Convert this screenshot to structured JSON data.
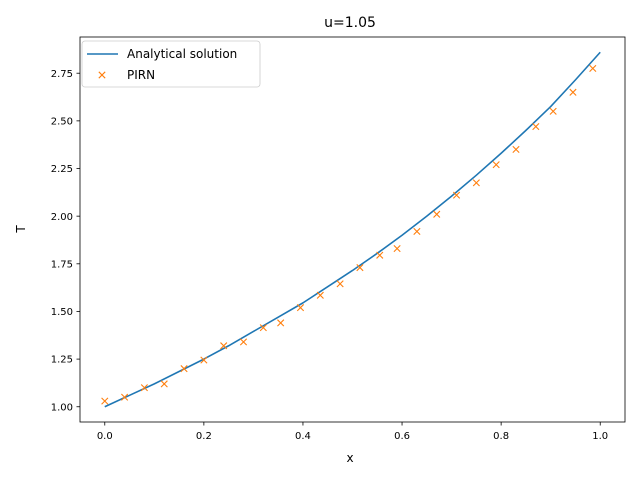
{
  "chart_data": {
    "type": "line",
    "title": "u=1.05",
    "xlabel": "x",
    "ylabel": "T",
    "xlim": [
      -0.05,
      1.05
    ],
    "ylim": [
      0.92,
      2.94
    ],
    "xticks": [
      "0.0",
      "0.2",
      "0.4",
      "0.6",
      "0.8",
      "1.0"
    ],
    "yticks": [
      "1.00",
      "1.25",
      "1.50",
      "1.75",
      "2.00",
      "2.25",
      "2.50",
      "2.75"
    ],
    "grid": false,
    "legend_position": "top-left",
    "series": [
      {
        "name": "Analytical solution",
        "kind": "line",
        "color": "#1f77b4",
        "x": [
          0.0,
          0.05,
          0.1,
          0.15,
          0.2,
          0.25,
          0.3,
          0.35,
          0.4,
          0.45,
          0.5,
          0.55,
          0.6,
          0.65,
          0.7,
          0.75,
          0.8,
          0.85,
          0.9,
          0.95,
          1.0
        ],
        "values": [
          1.0,
          1.06,
          1.12,
          1.185,
          1.25,
          1.32,
          1.395,
          1.47,
          1.545,
          1.63,
          1.715,
          1.805,
          1.9,
          2.0,
          2.105,
          2.215,
          2.33,
          2.45,
          2.575,
          2.715,
          2.86
        ]
      },
      {
        "name": "PIRN",
        "kind": "scatter",
        "marker": "x",
        "color": "#ff7f0e",
        "x": [
          0.0,
          0.04,
          0.08,
          0.12,
          0.16,
          0.2,
          0.24,
          0.28,
          0.32,
          0.355,
          0.395,
          0.435,
          0.475,
          0.515,
          0.555,
          0.59,
          0.63,
          0.67,
          0.71,
          0.75,
          0.79,
          0.83,
          0.87,
          0.905,
          0.945,
          0.985
        ],
        "values": [
          1.03,
          1.05,
          1.1,
          1.12,
          1.2,
          1.245,
          1.32,
          1.34,
          1.415,
          1.44,
          1.52,
          1.585,
          1.645,
          1.73,
          1.795,
          1.83,
          1.92,
          2.01,
          2.11,
          2.175,
          2.27,
          2.35,
          2.47,
          2.55,
          2.65,
          2.775
        ]
      }
    ]
  }
}
